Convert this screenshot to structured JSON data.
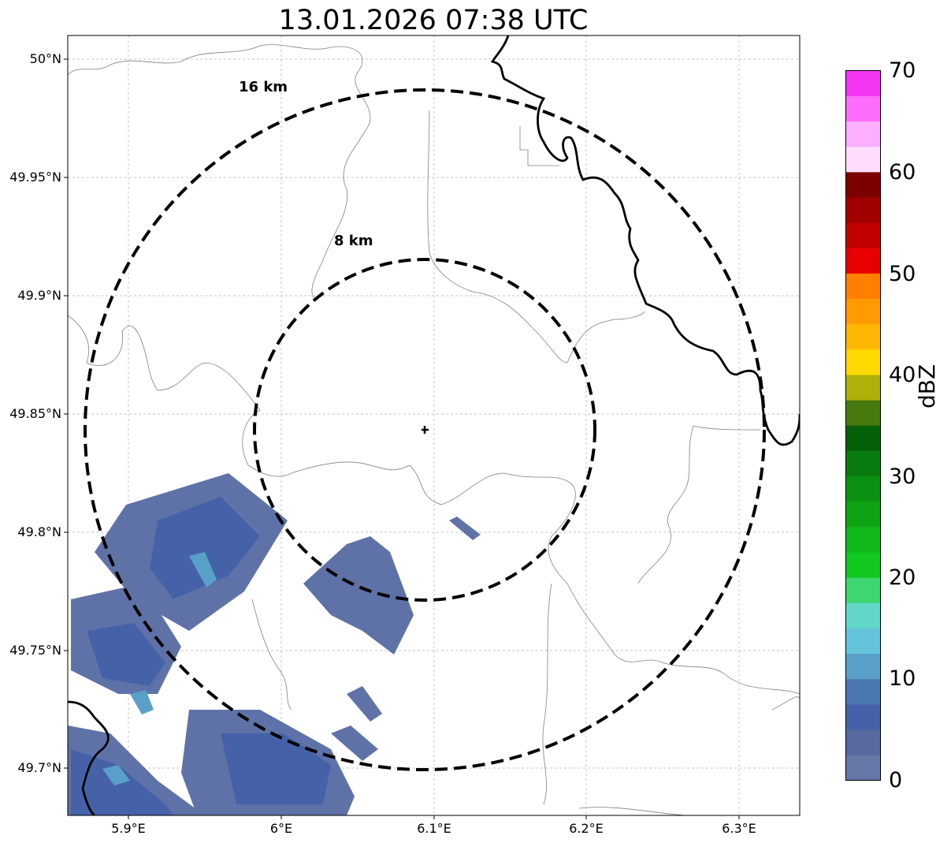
{
  "title": "13.01.2026 07:38 UTC",
  "map": {
    "center": {
      "lon": 6.095,
      "lat": 49.843
    },
    "extent": {
      "lon_min": 5.86,
      "lon_max": 6.34,
      "lat_min": 49.68,
      "lat_max": 50.01
    },
    "rings": [
      {
        "label": "8 km"
      },
      {
        "label": "16 km"
      }
    ],
    "lat_ticks": [
      "50°N",
      "49.95°N",
      "49.9°N",
      "49.85°N",
      "49.8°N",
      "49.75°N",
      "49.7°N"
    ],
    "lon_ticks": [
      "5.9°E",
      "6°E",
      "6.1°E",
      "6.2°E",
      "6.3°E"
    ],
    "gridlines": true,
    "radar_site_icon": "plus-marker-icon"
  },
  "colorbar": {
    "label": "dBZ",
    "ticks": [
      "70",
      "60",
      "50",
      "40",
      "30",
      "20",
      "10",
      "0"
    ],
    "min": 0,
    "max": 70,
    "colors": [
      "#6677a8",
      "#5669a0",
      "#4562a8",
      "#4b78b0",
      "#58a0c8",
      "#66c3dc",
      "#62d6c7",
      "#3dd670",
      "#12c920",
      "#10b81a",
      "#0ea414",
      "#0c9212",
      "#087c0e",
      "#05600a",
      "#477a0e",
      "#adb10a",
      "#fed900",
      "#ffb703",
      "#ff9a02",
      "#ff7f00",
      "#e80000",
      "#c20000",
      "#a00000",
      "#7c0000",
      "#fedcfe",
      "#feaefe",
      "#fd6cfd",
      "#f235f2"
    ]
  }
}
